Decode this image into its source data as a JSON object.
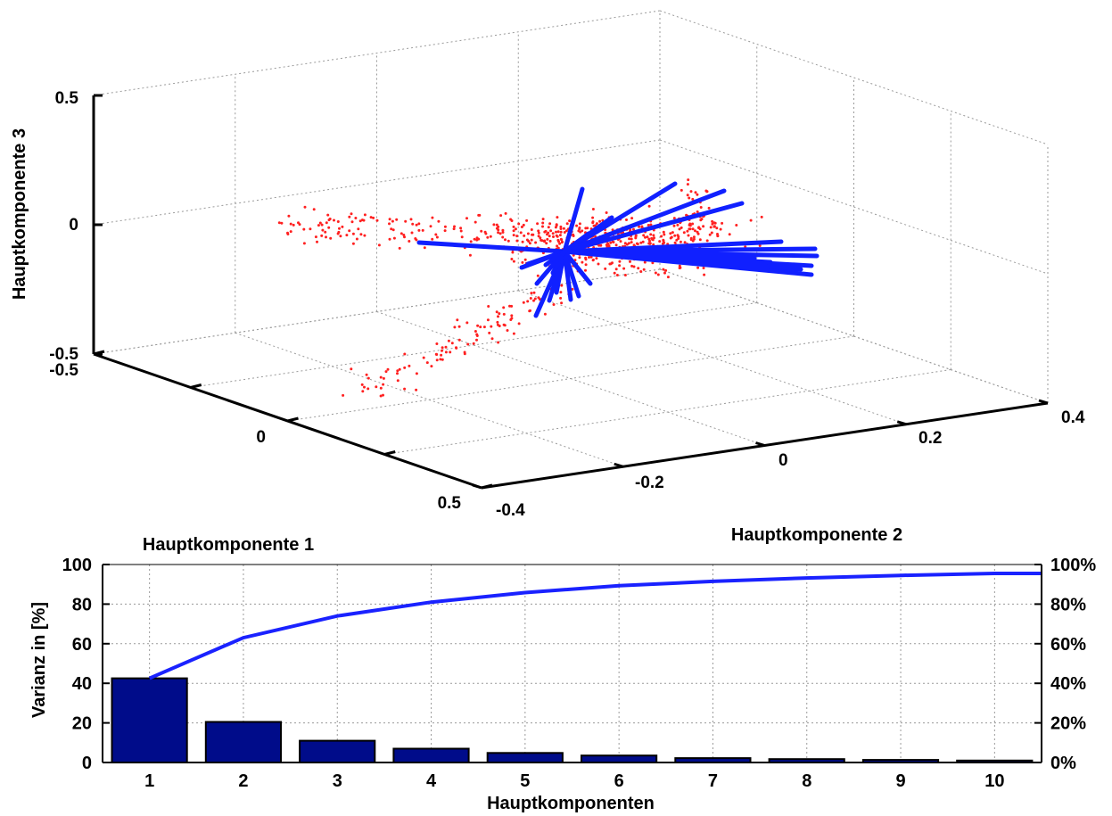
{
  "colors": {
    "scores": "#ff2020",
    "loadings": "#1020ff",
    "bars": "#000c8a",
    "cumulative": "#1a22ff",
    "grid": "#9a9a9a"
  },
  "chart_data": [
    {
      "type": "scatter",
      "subtype": "3d-biplot",
      "title": "",
      "xlabel": "Hauptkomponente 1",
      "ylabel": "Hauptkomponente 2",
      "zlabel": "Hauptkomponente 3",
      "xlim": [
        -0.5,
        0.5
      ],
      "ylim": [
        -0.4,
        0.4
      ],
      "zlim": [
        -0.5,
        0.5
      ],
      "x_ticks": [
        "-0.5",
        "0",
        "0.5"
      ],
      "y_ticks": [
        "-0.4",
        "-0.2",
        "0",
        "0.2",
        "0.4"
      ],
      "z_ticks": [
        "-0.5",
        "0",
        "0.5"
      ],
      "grid": true,
      "series": [
        {
          "marker": "dot",
          "color": "#ff2020",
          "point_count": 900,
          "extent": {
            "pc1": [
              -0.45,
              0.45
            ],
            "pc2": [
              -0.12,
              0.22
            ],
            "pc3": [
              -0.25,
              0.08
            ]
          }
        },
        {
          "marker": "line",
          "color": "#1020ff",
          "vector_count": 28
        }
      ]
    },
    {
      "type": "bar",
      "title": "",
      "xlabel": "Hauptkomponenten",
      "ylabel": "Varianz in [%]",
      "categories": [
        "1",
        "2",
        "3",
        "4",
        "5",
        "6",
        "7",
        "8",
        "9",
        "10"
      ],
      "ylim": [
        0,
        100
      ],
      "y_ticks": [
        "0",
        "20",
        "40",
        "60",
        "80",
        "100"
      ],
      "y2_ticks": [
        "0%",
        "20%",
        "40%",
        "60%",
        "80%",
        "100%"
      ],
      "grid": true,
      "series": [
        {
          "type": "bar",
          "color": "#000c8a",
          "values": [
            42.5,
            20.5,
            11.0,
            7.0,
            4.8,
            3.5,
            2.2,
            1.7,
            1.3,
            1.0
          ]
        },
        {
          "type": "line",
          "color": "#1a22ff",
          "axis": "right",
          "values": [
            42.5,
            63.0,
            74.0,
            81.0,
            85.8,
            89.3,
            91.5,
            93.2,
            94.5,
            95.5
          ],
          "extends_to_right_edge": 95.5
        }
      ]
    }
  ]
}
